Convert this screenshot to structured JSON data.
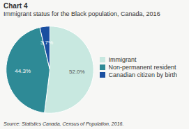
{
  "chart_data": {
    "type": "pie",
    "title": "Chart 4",
    "subtitle": "Immigrant status for the Black population, Canada, 2016",
    "source": "Source: Statistics Canada, Census of Population, 2016.",
    "categories": [
      "Immigrant",
      "Non-permanent resident",
      "Canadian citizen by birth"
    ],
    "values": [
      52.0,
      44.3,
      3.7
    ],
    "value_labels": [
      "52.0%",
      "44.3%",
      "3.7%"
    ],
    "colors": [
      "#c8e8e0",
      "#2e8a96",
      "#1a4fa0"
    ],
    "data_labels": true,
    "legend": "right"
  }
}
